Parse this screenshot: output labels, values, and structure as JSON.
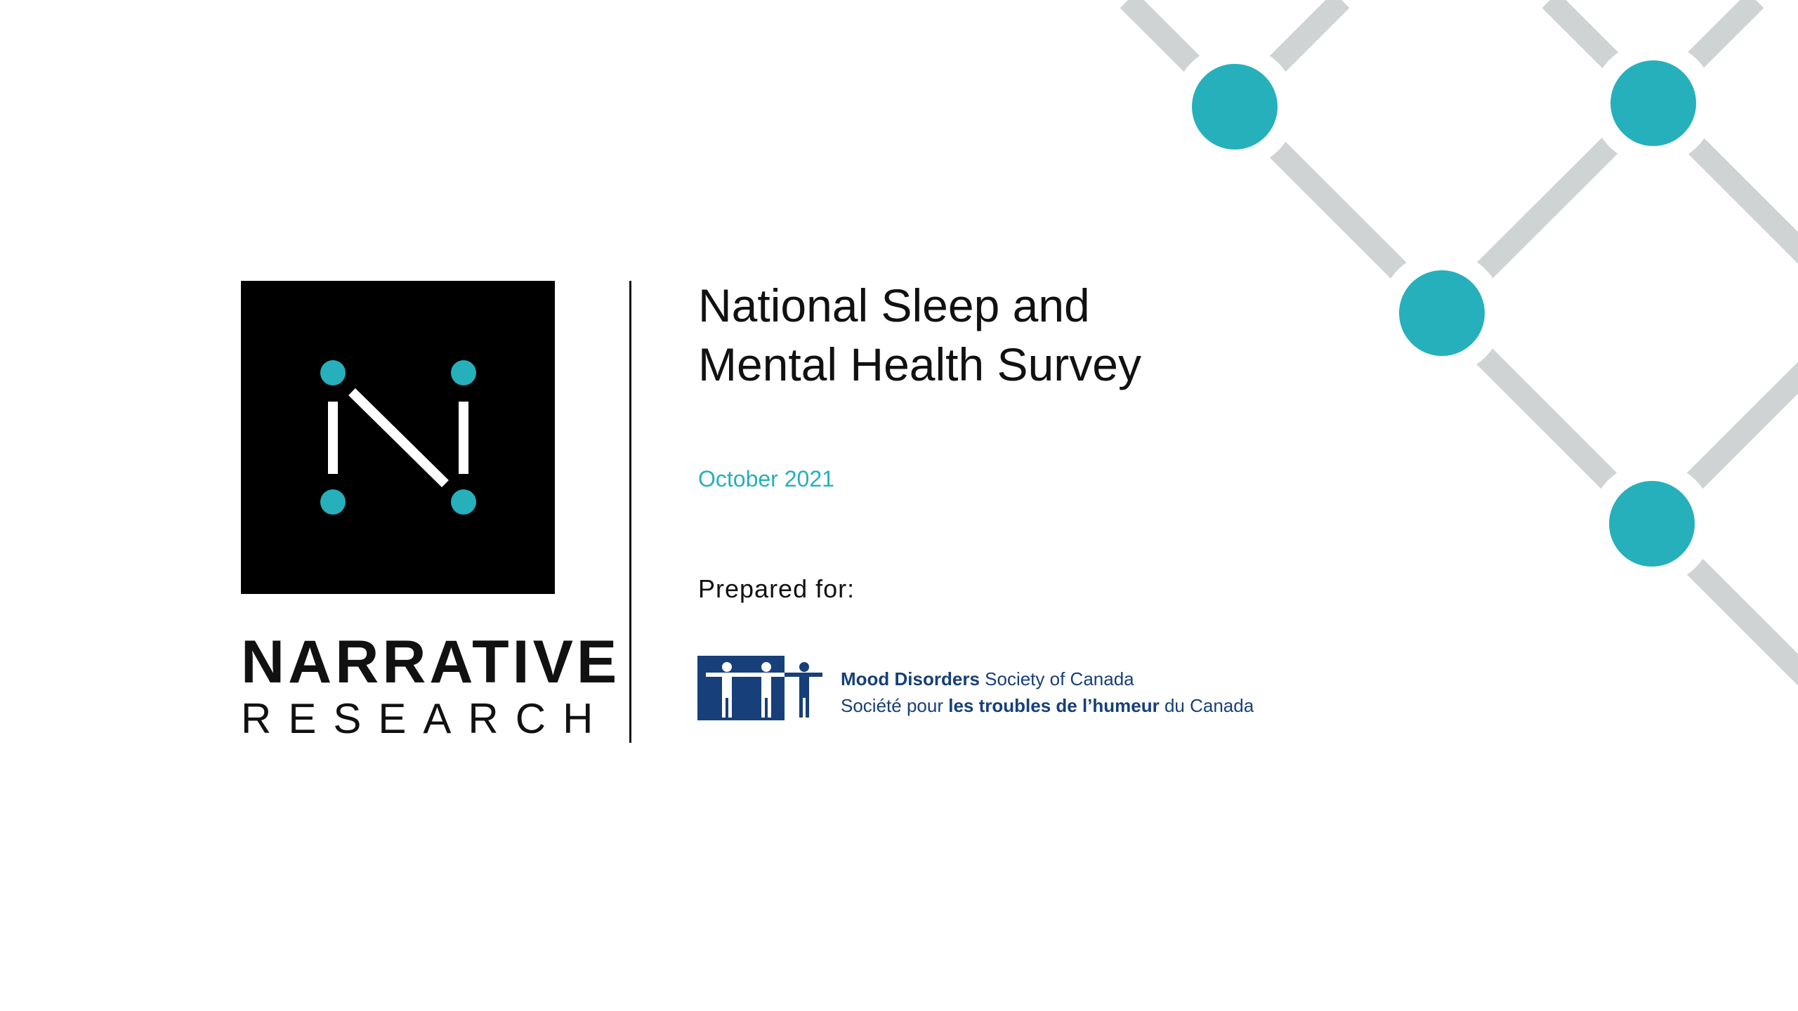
{
  "colors": {
    "accent": "#26b0bb",
    "pattern_lines": "#d0d3d4",
    "logo_bg": "#000000",
    "partner_blue": "#173f7a"
  },
  "logo": {
    "line1": "NARRATIVE",
    "line2": "RESEARCH",
    "icon": "n-dots-logo-icon"
  },
  "report": {
    "title_line1": "National Sleep and",
    "title_line2": "Mental Health Survey",
    "date": "October 2021",
    "prepared_for": "Prepared for:"
  },
  "partner": {
    "icon": "people-holding-hands-logo-icon",
    "en_bold": "Mood Disorders",
    "en_rest": " Society of Canada",
    "fr_pre": "Société pour ",
    "fr_bold": "les troubles de l’humeur",
    "fr_post": " du Canada"
  }
}
